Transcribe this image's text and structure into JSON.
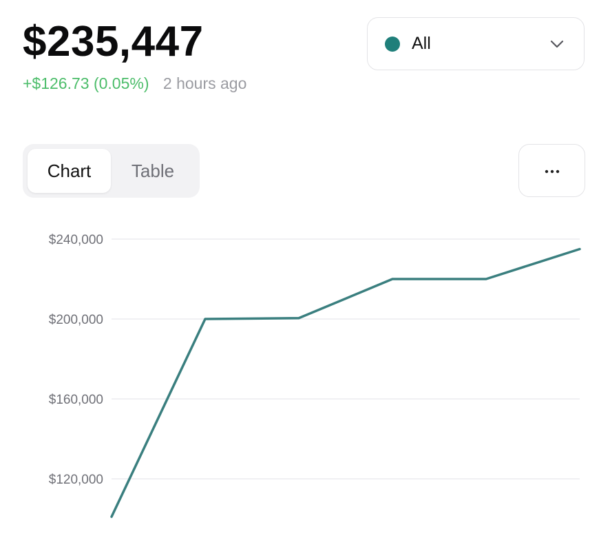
{
  "portfolio": {
    "balance": "$235,447",
    "change": "+$126.73 (0.05%)",
    "updated": "2 hours ago"
  },
  "filter": {
    "label": "All",
    "dot_color": "#1f7f7a"
  },
  "view_tabs": [
    {
      "label": "Chart",
      "active": true
    },
    {
      "label": "Table",
      "active": false
    }
  ],
  "more_button": {
    "icon": "more-horizontal-icon"
  },
  "colors": {
    "positive": "#4cbd6a",
    "line": "#3a7f7f",
    "grid": "#ececef"
  },
  "chart_data": {
    "type": "line",
    "ylabel": "",
    "xlabel": "",
    "y_ticks": [
      240000,
      200000,
      160000,
      120000
    ],
    "y_tick_labels": [
      "$240,000",
      "$200,000",
      "$160,000",
      "$120,000"
    ],
    "ylim": [
      100000,
      240000
    ],
    "grid": true,
    "legend": "none",
    "series": [
      {
        "values": [
          101000,
          200000,
          200400,
          220000,
          220000,
          235000
        ]
      }
    ]
  }
}
